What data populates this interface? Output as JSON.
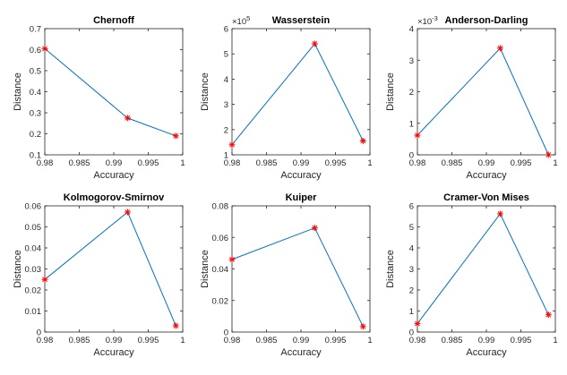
{
  "colors": {
    "line": "#0072BD",
    "marker": "#FF0000",
    "axis": "#262626",
    "background": "#FFFFFF"
  },
  "chart_data": [
    {
      "type": "line",
      "title": "Chernoff",
      "xlabel": "Accuracy",
      "ylabel": "Distance",
      "exponent_label": "",
      "xlim": [
        0.98,
        1.0
      ],
      "ylim": [
        0.1,
        0.7
      ],
      "xticks": [
        "0.98",
        "0.985",
        "0.99",
        "0.995",
        "1"
      ],
      "yticks": [
        "0.1",
        "0.2",
        "0.3",
        "0.4",
        "0.5",
        "0.6",
        "0.7"
      ],
      "ytick_values": [
        0.1,
        0.2,
        0.3,
        0.4,
        0.5,
        0.6,
        0.7
      ],
      "x": [
        0.98,
        0.992,
        0.999
      ],
      "y": [
        0.605,
        0.275,
        0.19
      ],
      "marker": "*",
      "grid": false
    },
    {
      "type": "line",
      "title": "Wasserstein",
      "xlabel": "Accuracy",
      "ylabel": "Distance",
      "exponent_label": "×10^5",
      "xlim": [
        0.98,
        1.0
      ],
      "ylim": [
        1,
        6
      ],
      "xticks": [
        "0.98",
        "0.985",
        "0.99",
        "0.995",
        "1"
      ],
      "yticks": [
        "1",
        "2",
        "3",
        "4",
        "5",
        "6"
      ],
      "ytick_values": [
        1,
        2,
        3,
        4,
        5,
        6
      ],
      "x": [
        0.98,
        0.992,
        0.999
      ],
      "y": [
        1.4,
        5.4,
        1.55
      ],
      "marker": "*",
      "grid": false
    },
    {
      "type": "line",
      "title": "Anderson-Darling",
      "xlabel": "Accuracy",
      "ylabel": "Distance",
      "exponent_label": "×10^-3",
      "xlim": [
        0.98,
        1.0
      ],
      "ylim": [
        0,
        4
      ],
      "xticks": [
        "0.98",
        "0.985",
        "0.99",
        "0.995",
        "1"
      ],
      "yticks": [
        "0",
        "1",
        "2",
        "3",
        "4"
      ],
      "ytick_values": [
        0,
        1,
        2,
        3,
        4
      ],
      "x": [
        0.98,
        0.992,
        0.999
      ],
      "y": [
        0.62,
        3.38,
        0.0
      ],
      "marker": "*",
      "grid": false
    },
    {
      "type": "line",
      "title": "Kolmogorov-Smirnov",
      "xlabel": "Accuracy",
      "ylabel": "Distance",
      "exponent_label": "",
      "xlim": [
        0.98,
        1.0
      ],
      "ylim": [
        0,
        0.06
      ],
      "xticks": [
        "0.98",
        "0.985",
        "0.99",
        "0.995",
        "1"
      ],
      "yticks": [
        "0",
        "0.01",
        "0.02",
        "0.03",
        "0.04",
        "0.05",
        "0.06"
      ],
      "ytick_values": [
        0,
        0.01,
        0.02,
        0.03,
        0.04,
        0.05,
        0.06
      ],
      "x": [
        0.98,
        0.992,
        0.999
      ],
      "y": [
        0.025,
        0.057,
        0.003
      ],
      "marker": "*",
      "grid": false
    },
    {
      "type": "line",
      "title": "Kuiper",
      "xlabel": "Accuracy",
      "ylabel": "Distance",
      "exponent_label": "",
      "xlim": [
        0.98,
        1.0
      ],
      "ylim": [
        0,
        0.08
      ],
      "xticks": [
        "0.98",
        "0.985",
        "0.99",
        "0.995",
        "1"
      ],
      "yticks": [
        "0",
        "0.02",
        "0.04",
        "0.06",
        "0.08"
      ],
      "ytick_values": [
        0,
        0.02,
        0.04,
        0.06,
        0.08
      ],
      "x": [
        0.98,
        0.992,
        0.999
      ],
      "y": [
        0.046,
        0.066,
        0.0035
      ],
      "marker": "*",
      "grid": false
    },
    {
      "type": "line",
      "title": "Cramer-Von Mises",
      "xlabel": "Accuracy",
      "ylabel": "Distance",
      "exponent_label": "",
      "xlim": [
        0.98,
        1.0
      ],
      "ylim": [
        0,
        6
      ],
      "xticks": [
        "0.98",
        "0.985",
        "0.99",
        "0.995",
        "1"
      ],
      "yticks": [
        "0",
        "1",
        "2",
        "3",
        "4",
        "5",
        "6"
      ],
      "ytick_values": [
        0,
        1,
        2,
        3,
        4,
        5,
        6
      ],
      "x": [
        0.98,
        0.992,
        0.999
      ],
      "y": [
        0.4,
        5.62,
        0.82
      ],
      "marker": "*",
      "grid": false
    }
  ]
}
